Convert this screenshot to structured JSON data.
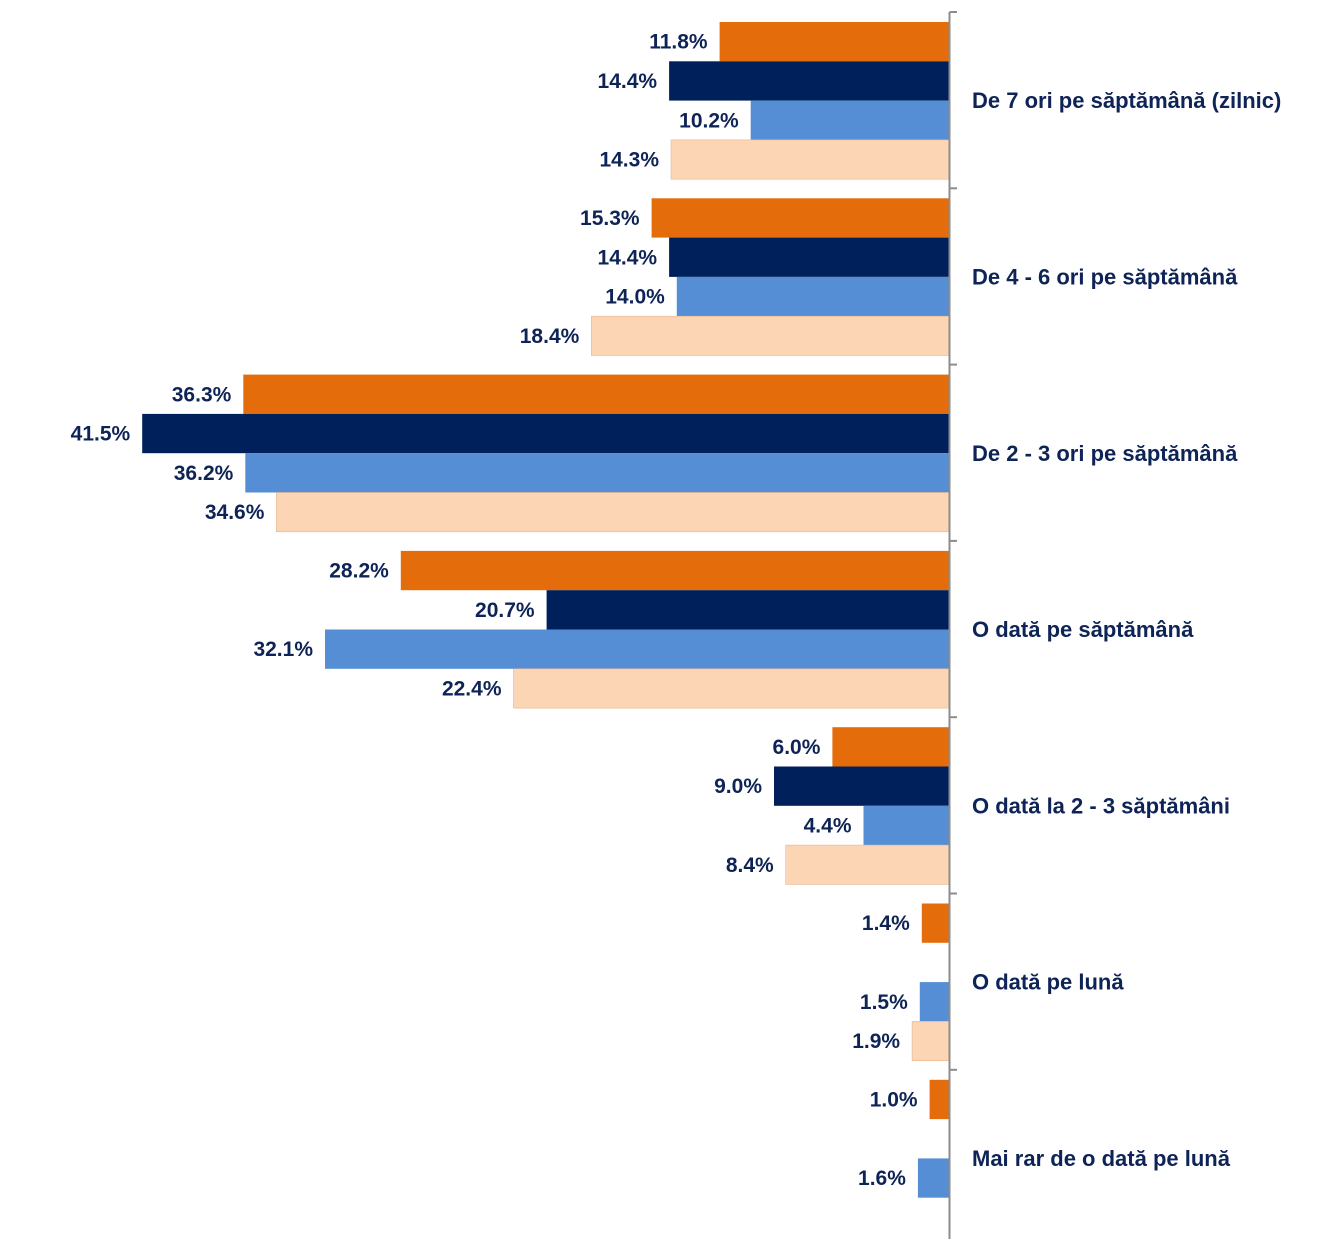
{
  "chart_data": {
    "type": "bar",
    "orientation": "horizontal",
    "categories": [
      "De 7 ori pe săptămână (zilnic)",
      "De 4 - 6 ori pe săptămână",
      "De 2 - 3 ori pe săptămână",
      "O dată pe săptămână",
      "O dată la 2 - 3 săptămâni",
      "O dată pe lună",
      "Mai rar de o dată pe lună"
    ],
    "series": [
      {
        "color": "#e46c0a",
        "values": [
          11.8,
          15.3,
          36.3,
          28.2,
          6.0,
          1.4,
          1.0
        ],
        "labels": [
          "11.8%",
          "15.3%",
          "36.3%",
          "28.2%",
          "6.0%",
          "1.4%",
          "1.0%"
        ]
      },
      {
        "color": "#00205b",
        "values": [
          14.4,
          14.4,
          41.5,
          20.7,
          9.0,
          null,
          null
        ],
        "labels": [
          "14.4%",
          "14.4%",
          "41.5%",
          "20.7%",
          "9.0%",
          null,
          null
        ]
      },
      {
        "color": "#558ed5",
        "values": [
          10.2,
          14.0,
          36.2,
          32.1,
          4.4,
          1.5,
          1.6
        ],
        "labels": [
          "10.2%",
          "14.0%",
          "36.2%",
          "32.1%",
          "4.4%",
          "1.5%",
          "1.6%"
        ]
      },
      {
        "color": "#fcd5b5",
        "values": [
          14.3,
          18.4,
          34.6,
          22.4,
          8.4,
          1.9,
          null
        ],
        "labels": [
          "14.3%",
          "18.4%",
          "34.6%",
          "22.4%",
          "8.4%",
          "1.9%",
          null
        ]
      }
    ],
    "direction": "bars extend leftward from a vertical axis on the right",
    "category_label_position": "right of axis",
    "legend": "none",
    "grid": false
  }
}
